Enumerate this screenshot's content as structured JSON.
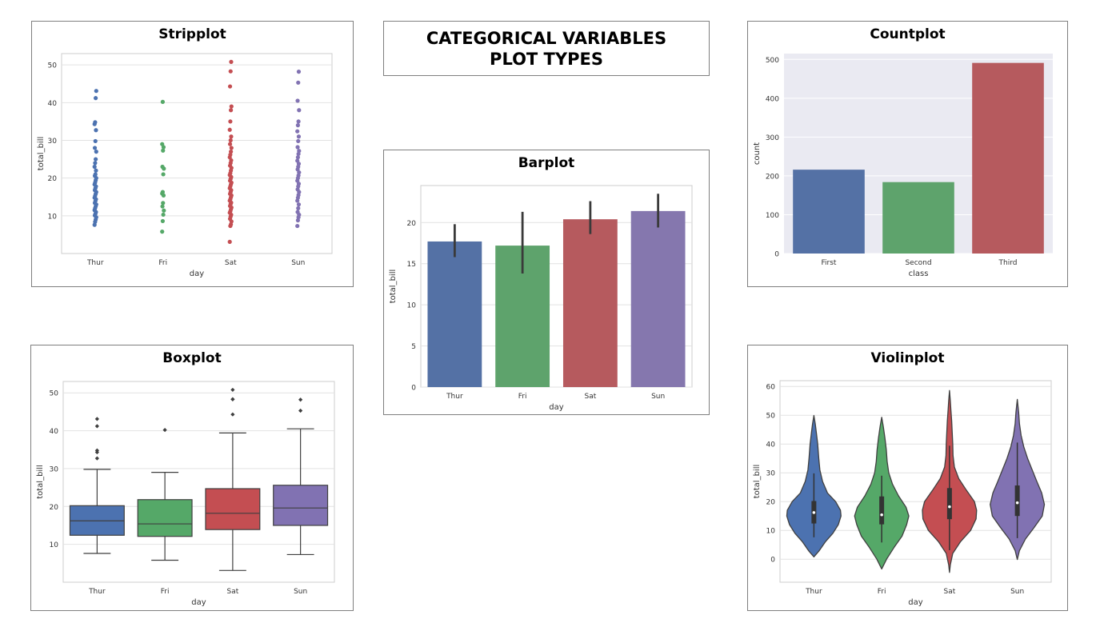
{
  "page_title": {
    "line1": "CATEGORICAL VARIABLES",
    "line2": "PLOT TYPES"
  },
  "chart_data": [
    {
      "id": "strip",
      "type": "scatter",
      "title": "Stripplot",
      "xlabel": "day",
      "ylabel": "total_bill",
      "categories": [
        "Thur",
        "Fri",
        "Sat",
        "Sun"
      ],
      "yticks": [
        10,
        20,
        30,
        40,
        50
      ],
      "ylim": [
        0,
        53
      ],
      "grid": true,
      "colors": [
        "#4c72b0",
        "#55a868",
        "#c44e52",
        "#8172b2"
      ],
      "series": [
        {
          "category": "Thur",
          "values": [
            7.6,
            8.4,
            9.0,
            9.6,
            10.1,
            10.5,
            11.0,
            11.5,
            12.0,
            12.5,
            13.0,
            13.4,
            13.9,
            14.4,
            14.8,
            15.3,
            15.8,
            16.3,
            16.8,
            17.3,
            17.8,
            18.3,
            18.8,
            19.4,
            20.0,
            20.6,
            21.0,
            22.0,
            23.0,
            24.0,
            25.0,
            27.0,
            28.0,
            29.8,
            32.7,
            34.3,
            34.8,
            41.2,
            43.1
          ]
        },
        {
          "category": "Fri",
          "values": [
            5.8,
            8.6,
            10.3,
            11.4,
            12.5,
            13.4,
            15.4,
            15.9,
            16.3,
            21.0,
            22.5,
            23.0,
            27.3,
            28.2,
            29.0,
            40.2
          ]
        },
        {
          "category": "Sat",
          "values": [
            3.1,
            7.3,
            7.7,
            8.5,
            9.2,
            9.8,
            10.3,
            10.8,
            11.2,
            11.7,
            12.2,
            12.6,
            13.1,
            13.5,
            14.0,
            14.4,
            14.9,
            15.4,
            15.8,
            16.3,
            16.8,
            17.3,
            17.8,
            18.3,
            18.8,
            19.3,
            19.8,
            20.3,
            20.8,
            21.3,
            22.0,
            22.7,
            23.3,
            24.0,
            24.7,
            25.5,
            26.2,
            27.0,
            28.0,
            29.0,
            30.0,
            31.0,
            32.8,
            35.0,
            38.0,
            39.0,
            44.3,
            48.3,
            50.8
          ]
        },
        {
          "category": "Sun",
          "values": [
            7.3,
            8.8,
            9.6,
            10.3,
            11.0,
            12.0,
            13.0,
            14.0,
            14.8,
            15.5,
            16.3,
            17.0,
            17.8,
            18.5,
            19.3,
            20.0,
            20.7,
            21.5,
            22.3,
            23.0,
            23.8,
            24.6,
            25.5,
            26.4,
            27.2,
            28.2,
            29.8,
            31.0,
            32.4,
            34.0,
            35.0,
            38.0,
            40.5,
            45.3,
            48.2
          ]
        }
      ]
    },
    {
      "id": "count",
      "type": "bar",
      "title": "Countplot",
      "xlabel": "class",
      "ylabel": "count",
      "categories": [
        "First",
        "Second",
        "Third"
      ],
      "values": [
        216,
        184,
        491
      ],
      "yticks": [
        0,
        100,
        200,
        300,
        400,
        500
      ],
      "ylim": [
        0,
        515
      ],
      "grid": true,
      "colors": [
        "#5471a5",
        "#5ea36c",
        "#b65a5e"
      ]
    },
    {
      "id": "bar",
      "type": "bar",
      "title": "Barplot",
      "xlabel": "day",
      "ylabel": "total_bill",
      "categories": [
        "Thur",
        "Fri",
        "Sat",
        "Sun"
      ],
      "values": [
        17.7,
        17.2,
        20.4,
        21.4
      ],
      "ci_low": [
        15.8,
        13.8,
        18.6,
        19.4
      ],
      "ci_high": [
        19.8,
        21.3,
        22.6,
        23.5
      ],
      "yticks": [
        0,
        5,
        10,
        15,
        20
      ],
      "ylim": [
        0,
        24.5
      ],
      "grid": true,
      "colors": [
        "#5471a5",
        "#5ea36c",
        "#b65a5e",
        "#8577ae"
      ]
    },
    {
      "id": "box",
      "type": "box",
      "title": "Boxplot",
      "xlabel": "day",
      "ylabel": "total_bill",
      "categories": [
        "Thur",
        "Fri",
        "Sat",
        "Sun"
      ],
      "boxes": [
        {
          "min": 7.6,
          "q1": 12.4,
          "median": 16.2,
          "q3": 20.2,
          "max": 29.8,
          "outliers": [
            32.7,
            34.3,
            34.8,
            41.2,
            43.1
          ]
        },
        {
          "min": 5.8,
          "q1": 12.1,
          "median": 15.4,
          "q3": 21.8,
          "max": 29.0,
          "outliers": [
            40.2
          ]
        },
        {
          "min": 3.1,
          "q1": 13.9,
          "median": 18.2,
          "q3": 24.7,
          "max": 39.4,
          "outliers": [
            44.3,
            48.3,
            48.3,
            50.8
          ]
        },
        {
          "min": 7.3,
          "q1": 15.0,
          "median": 19.6,
          "q3": 25.6,
          "max": 40.5,
          "outliers": [
            45.3,
            48.2
          ]
        }
      ],
      "yticks": [
        10,
        20,
        30,
        40,
        50
      ],
      "ylim": [
        0,
        53
      ],
      "grid": true,
      "colors": [
        "#4c72b0",
        "#55a868",
        "#c44e52",
        "#8172b2"
      ]
    },
    {
      "id": "violin",
      "type": "violin",
      "title": "Violinplot",
      "xlabel": "day",
      "ylabel": "total_bill",
      "categories": [
        "Thur",
        "Fri",
        "Sat",
        "Sun"
      ],
      "violins": [
        {
          "min": 0.8,
          "max": 49.9,
          "q1": 12.4,
          "median": 16.2,
          "q3": 20.2,
          "whisker_low": 7.6,
          "whisker_high": 29.8,
          "density": [
            [
              0.8,
              0
            ],
            [
              3,
              0.2
            ],
            [
              6,
              0.42
            ],
            [
              9,
              0.7
            ],
            [
              12,
              0.9
            ],
            [
              15,
              1.0
            ],
            [
              17,
              0.98
            ],
            [
              20,
              0.8
            ],
            [
              23,
              0.5
            ],
            [
              27,
              0.32
            ],
            [
              31,
              0.22
            ],
            [
              35,
              0.18
            ],
            [
              40,
              0.14
            ],
            [
              44,
              0.09
            ],
            [
              47,
              0.05
            ],
            [
              49.9,
              0
            ]
          ]
        },
        {
          "min": -3.4,
          "max": 49.3,
          "q1": 12.1,
          "median": 15.4,
          "q3": 21.8,
          "whisker_low": 5.8,
          "whisker_high": 29.0,
          "density": [
            [
              -3.4,
              0
            ],
            [
              0,
              0.18
            ],
            [
              4,
              0.45
            ],
            [
              8,
              0.75
            ],
            [
              12,
              0.92
            ],
            [
              15,
              1.0
            ],
            [
              18,
              0.9
            ],
            [
              22,
              0.62
            ],
            [
              26,
              0.4
            ],
            [
              30,
              0.26
            ],
            [
              34,
              0.2
            ],
            [
              38,
              0.17
            ],
            [
              42,
              0.12
            ],
            [
              46,
              0.06
            ],
            [
              49.3,
              0
            ]
          ]
        },
        {
          "min": -4.6,
          "max": 58.6,
          "q1": 13.9,
          "median": 18.2,
          "q3": 24.7,
          "whisker_low": 3.1,
          "whisker_high": 39.4,
          "density": [
            [
              -4.6,
              0
            ],
            [
              -2,
              0.03
            ],
            [
              2,
              0.12
            ],
            [
              6,
              0.4
            ],
            [
              10,
              0.78
            ],
            [
              14,
              0.98
            ],
            [
              17,
              1.0
            ],
            [
              20,
              0.92
            ],
            [
              24,
              0.62
            ],
            [
              28,
              0.34
            ],
            [
              32,
              0.18
            ],
            [
              36,
              0.13
            ],
            [
              40,
              0.12
            ],
            [
              44,
              0.1
            ],
            [
              48,
              0.08
            ],
            [
              52,
              0.05
            ],
            [
              55,
              0.03
            ],
            [
              58.6,
              0
            ]
          ]
        },
        {
          "min": -0.1,
          "max": 55.5,
          "q1": 15.0,
          "median": 19.6,
          "q3": 25.6,
          "whisker_low": 7.3,
          "whisker_high": 40.5,
          "density": [
            [
              -0.1,
              0
            ],
            [
              3,
              0.08
            ],
            [
              7,
              0.3
            ],
            [
              11,
              0.62
            ],
            [
              15,
              0.92
            ],
            [
              19,
              1.0
            ],
            [
              23,
              0.9
            ],
            [
              27,
              0.72
            ],
            [
              31,
              0.55
            ],
            [
              35,
              0.38
            ],
            [
              39,
              0.24
            ],
            [
              43,
              0.14
            ],
            [
              47,
              0.08
            ],
            [
              51,
              0.05
            ],
            [
              55.5,
              0
            ]
          ]
        }
      ],
      "yticks": [
        0,
        10,
        20,
        30,
        40,
        50,
        60
      ],
      "ylim": [
        -8,
        62
      ],
      "grid": true,
      "colors": [
        "#4c72b0",
        "#55a868",
        "#c44e52",
        "#8172b2"
      ]
    }
  ]
}
